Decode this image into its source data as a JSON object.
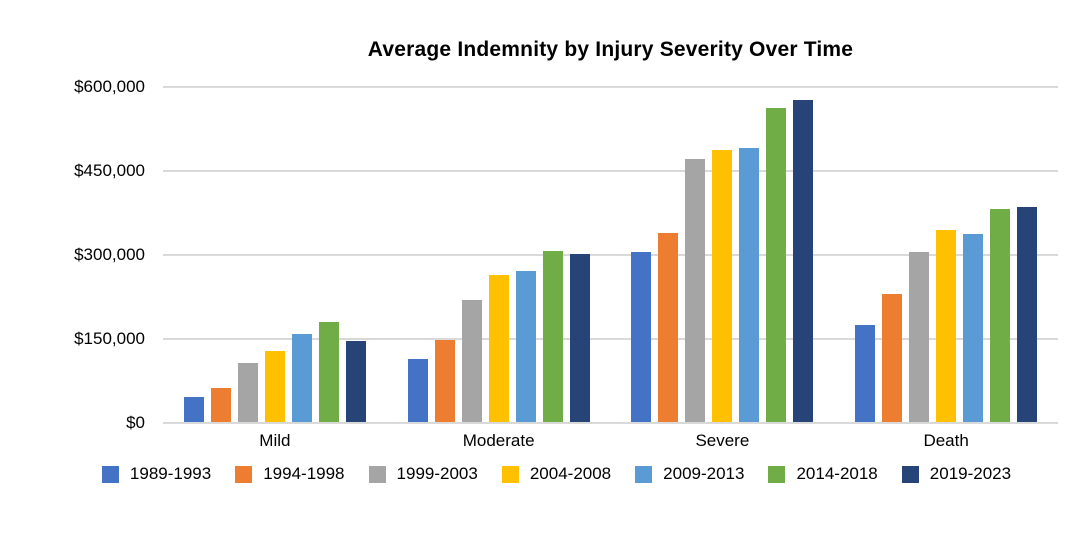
{
  "chart_data": {
    "type": "bar",
    "title": "Average Indemnity by Injury Severity Over Time",
    "categories": [
      "Mild",
      "Moderate",
      "Severe",
      "Death"
    ],
    "series": [
      {
        "name": "1989-1993",
        "color": "#4472C4",
        "values": [
          45000,
          112000,
          304000,
          174000
        ]
      },
      {
        "name": "1994-1998",
        "color": "#ED7D31",
        "values": [
          60000,
          147000,
          337000,
          228000
        ]
      },
      {
        "name": "1999-2003",
        "color": "#A5A5A5",
        "values": [
          105000,
          217000,
          469000,
          304000
        ]
      },
      {
        "name": "2004-2008",
        "color": "#FFC000",
        "values": [
          126000,
          262000,
          485000,
          343000
        ]
      },
      {
        "name": "2009-2013",
        "color": "#5B9BD5",
        "values": [
          157000,
          270000,
          490000,
          335000
        ]
      },
      {
        "name": "2014-2018",
        "color": "#70AD47",
        "values": [
          178000,
          305000,
          560000,
          380000
        ]
      },
      {
        "name": "2019-2023",
        "color": "#264478",
        "values": [
          145000,
          300000,
          575000,
          384000
        ]
      }
    ],
    "xlabel": "",
    "ylabel": "",
    "ylim": [
      0,
      600000
    ],
    "yticks": [
      0,
      150000,
      300000,
      450000,
      600000
    ],
    "ytick_labels": [
      "$0",
      "$150,000",
      "$300,000",
      "$450,000",
      "$600,000"
    ],
    "grid": true,
    "legend_position": "bottom"
  },
  "colors": {
    "background": "#FFFFFF",
    "gridline": "#D9D9D9",
    "text": "#000000"
  }
}
